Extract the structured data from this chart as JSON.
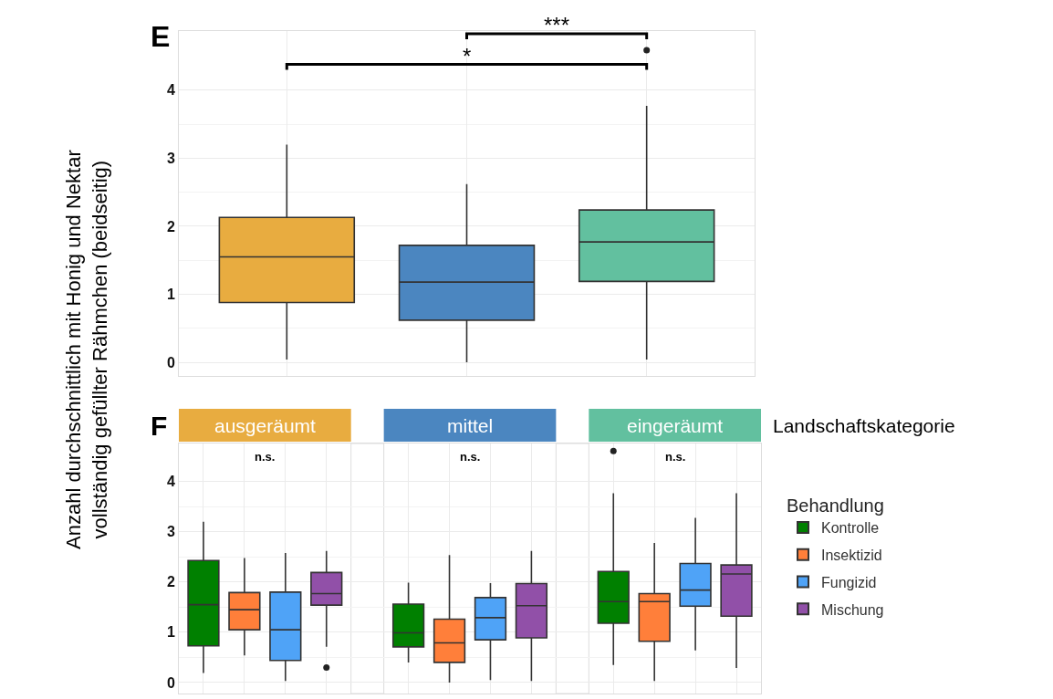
{
  "chart_data": [
    {
      "type": "box",
      "title": "E",
      "ylabel": "Anzahl durchschnittlich mit Honig und Nektar\nvollständig gefüllter Rähmchen (beidseitig)",
      "categories": [
        null,
        null,
        null
      ],
      "colors": [
        "#e8ac40",
        "#4b86c0",
        "#62c09f"
      ],
      "boxes": [
        {
          "low": 0.04,
          "q1": 0.88,
          "median": 1.55,
          "q3": 2.13,
          "high": 3.2
        },
        {
          "low": 0,
          "q1": 0.62,
          "median": 1.18,
          "q3": 1.72,
          "high": 2.62
        },
        {
          "low": 0.04,
          "q1": 1.19,
          "median": 1.77,
          "q3": 2.24,
          "high": 3.77,
          "outliers": [
            4.59
          ]
        }
      ],
      "ylim": [
        -0.2,
        4.87
      ],
      "yticks": [
        0,
        1,
        2,
        3,
        4
      ],
      "grid": true,
      "tick_labels": "y",
      "annotations": [
        "*",
        "***"
      ]
    },
    {
      "type": "box",
      "title": "F",
      "categories": [
        null,
        null,
        null,
        null,
        null,
        null,
        null,
        null,
        null,
        null,
        null,
        null,
        null,
        null
      ],
      "ylim": [
        -0.22,
        4.76
      ],
      "yticks": [
        0,
        1,
        2,
        3,
        4
      ],
      "grid": true,
      "tick_labels": "y",
      "legend": "right",
      "legend_title": "Behandlung",
      "annotations": [
        "ausgeräumt",
        "mittel",
        "eingeräumt",
        "n.s.",
        "n.s.",
        "n.s.",
        "Landschaftskategorie"
      ],
      "series": [
        {
          "name": "Kontrolle",
          "color": "#008000",
          "boxes": [
            {
              "low": 0.19,
              "q1": 0.73,
              "median": 1.55,
              "q3": 2.43,
              "high": 3.2
            },
            null,
            null,
            null,
            null,
            {
              "low": 0.4,
              "q1": 0.71,
              "median": 0.99,
              "q3": 1.56,
              "high": 1.99
            },
            null,
            null,
            null,
            null,
            {
              "low": 0.35,
              "q1": 1.18,
              "median": 1.61,
              "q3": 2.21,
              "high": 3.77,
              "outliers": [
                4.61
              ]
            },
            null,
            null,
            null
          ]
        },
        {
          "name": "Insektizid",
          "color": "#ff7f3a",
          "boxes": [
            null,
            {
              "low": 0.54,
              "q1": 1.05,
              "median": 1.45,
              "q3": 1.79,
              "high": 2.48
            },
            null,
            null,
            null,
            null,
            {
              "low": 0,
              "q1": 0.4,
              "median": 0.79,
              "q3": 1.26,
              "high": 2.54
            },
            null,
            null,
            null,
            null,
            {
              "low": 0.03,
              "q1": 0.82,
              "median": 1.61,
              "q3": 1.77,
              "high": 2.78
            },
            null,
            null
          ]
        },
        {
          "name": "Fungizid",
          "color": "#4fa3f7",
          "boxes": [
            null,
            null,
            {
              "low": 0.03,
              "q1": 0.44,
              "median": 1.05,
              "q3": 1.8,
              "high": 2.58
            },
            null,
            null,
            null,
            null,
            {
              "low": 0.05,
              "q1": 0.85,
              "median": 1.29,
              "q3": 1.69,
              "high": 1.98
            },
            null,
            null,
            null,
            null,
            {
              "low": 0.64,
              "q1": 1.52,
              "median": 1.84,
              "q3": 2.37,
              "high": 3.28
            },
            null
          ]
        },
        {
          "name": "Mischung",
          "color": "#9150a8",
          "boxes": [
            null,
            null,
            null,
            {
              "low": 0.71,
              "q1": 1.54,
              "median": 1.77,
              "q3": 2.19,
              "high": 2.62,
              "outliers": [
                0.3
              ]
            },
            null,
            null,
            null,
            null,
            {
              "low": 0.03,
              "q1": 0.89,
              "median": 1.53,
              "q3": 1.97,
              "high": 2.62
            },
            null,
            null,
            null,
            null,
            {
              "low": 0.29,
              "q1": 1.32,
              "median": 2.16,
              "q3": 2.34,
              "high": 3.77
            }
          ]
        }
      ]
    }
  ]
}
